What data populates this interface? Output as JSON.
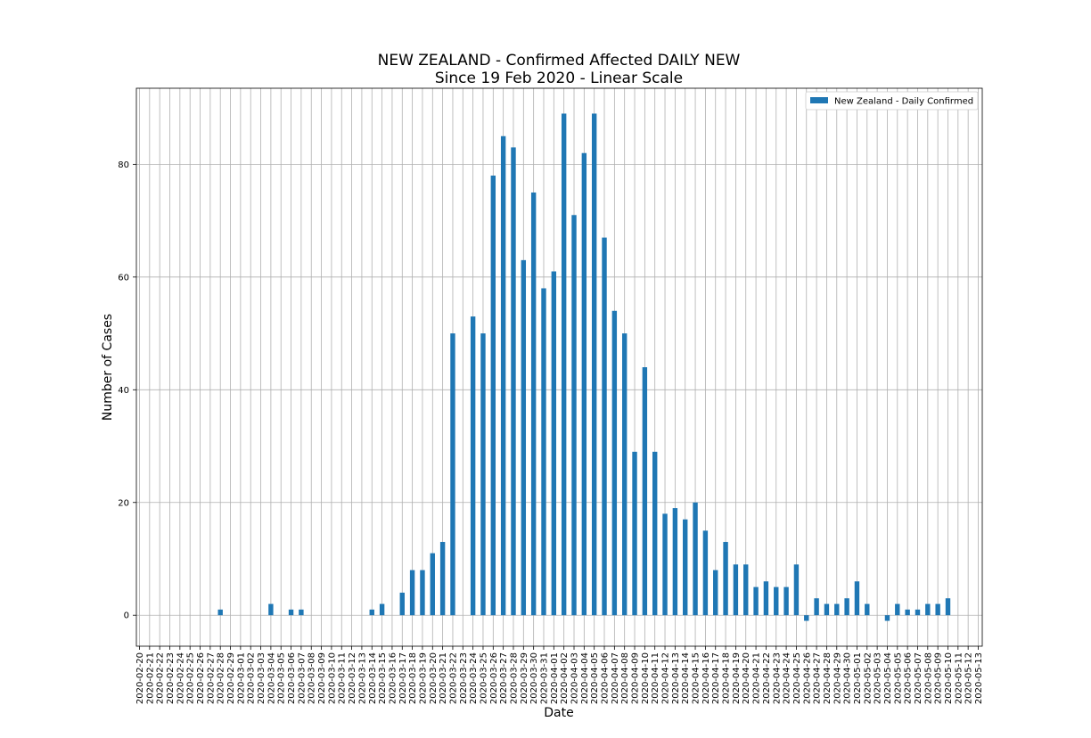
{
  "chart_data": {
    "type": "bar",
    "title": "NEW ZEALAND - Confirmed Affected DAILY NEW",
    "subtitle": "Since 19 Feb 2020 - Linear Scale",
    "xlabel": "Date",
    "ylabel": "Number of Cases",
    "ylim": [
      -5.5,
      93.5
    ],
    "yticks": [
      0,
      20,
      40,
      60,
      80
    ],
    "grid": true,
    "legend_position": "top-right",
    "colors": {
      "bar": "#1f77b4",
      "grid": "#b0b0b0",
      "axis": "#000000"
    },
    "categories": [
      "2020-02-20",
      "2020-02-21",
      "2020-02-22",
      "2020-02-23",
      "2020-02-24",
      "2020-02-25",
      "2020-02-26",
      "2020-02-27",
      "2020-02-28",
      "2020-02-29",
      "2020-03-01",
      "2020-03-02",
      "2020-03-03",
      "2020-03-04",
      "2020-03-05",
      "2020-03-06",
      "2020-03-07",
      "2020-03-08",
      "2020-03-09",
      "2020-03-10",
      "2020-03-11",
      "2020-03-12",
      "2020-03-13",
      "2020-03-14",
      "2020-03-15",
      "2020-03-16",
      "2020-03-17",
      "2020-03-18",
      "2020-03-19",
      "2020-03-20",
      "2020-03-21",
      "2020-03-22",
      "2020-03-23",
      "2020-03-24",
      "2020-03-25",
      "2020-03-26",
      "2020-03-27",
      "2020-03-28",
      "2020-03-29",
      "2020-03-30",
      "2020-03-31",
      "2020-04-01",
      "2020-04-02",
      "2020-04-03",
      "2020-04-04",
      "2020-04-05",
      "2020-04-06",
      "2020-04-07",
      "2020-04-08",
      "2020-04-09",
      "2020-04-10",
      "2020-04-11",
      "2020-04-12",
      "2020-04-13",
      "2020-04-14",
      "2020-04-15",
      "2020-04-16",
      "2020-04-17",
      "2020-04-18",
      "2020-04-19",
      "2020-04-20",
      "2020-04-21",
      "2020-04-22",
      "2020-04-23",
      "2020-04-24",
      "2020-04-25",
      "2020-04-26",
      "2020-04-27",
      "2020-04-28",
      "2020-04-29",
      "2020-04-30",
      "2020-05-01",
      "2020-05-02",
      "2020-05-03",
      "2020-05-04",
      "2020-05-05",
      "2020-05-06",
      "2020-05-07",
      "2020-05-08",
      "2020-05-09",
      "2020-05-10",
      "2020-05-11",
      "2020-05-12",
      "2020-05-13"
    ],
    "series": [
      {
        "name": "New Zealand - Daily Confirmed",
        "values": [
          0,
          0,
          0,
          0,
          0,
          0,
          0,
          0,
          1,
          0,
          0,
          0,
          0,
          2,
          0,
          1,
          1,
          0,
          0,
          0,
          0,
          0,
          0,
          1,
          2,
          0,
          4,
          8,
          8,
          11,
          13,
          50,
          0,
          53,
          50,
          78,
          85,
          83,
          63,
          75,
          58,
          61,
          89,
          71,
          82,
          89,
          67,
          54,
          50,
          29,
          44,
          29,
          18,
          19,
          17,
          20,
          15,
          8,
          13,
          9,
          9,
          5,
          6,
          5,
          5,
          9,
          -1,
          3,
          2,
          2,
          3,
          6,
          2,
          0,
          -1,
          2,
          1,
          1,
          2,
          2,
          3,
          0,
          0,
          0
        ]
      }
    ]
  }
}
